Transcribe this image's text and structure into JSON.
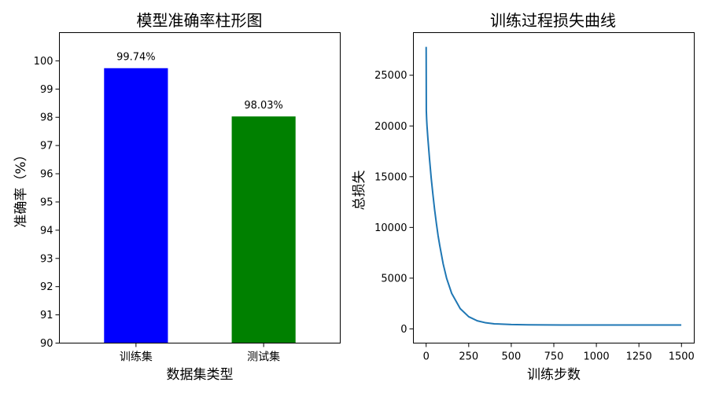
{
  "chart_data": [
    {
      "type": "bar",
      "title": "模型准确率柱形图",
      "xlabel": "数据集类型",
      "ylabel": "准确率（%）",
      "categories": [
        "训练集",
        "测试集"
      ],
      "values": [
        99.74,
        98.03
      ],
      "value_labels": [
        "99.74%",
        "98.03%"
      ],
      "colors": [
        "#0000ff",
        "#008000"
      ],
      "ylim": [
        90,
        101
      ],
      "yticks": [
        90,
        91,
        92,
        93,
        94,
        95,
        96,
        97,
        98,
        99,
        100
      ],
      "grid": false
    },
    {
      "type": "line",
      "title": "训练过程损失曲线",
      "xlabel": "训练步数",
      "ylabel": "总损失",
      "xlim": [
        -75,
        1575
      ],
      "ylim": [
        -1400,
        29200
      ],
      "xticks": [
        0,
        250,
        500,
        750,
        1000,
        1250,
        1500
      ],
      "yticks": [
        0,
        5000,
        10000,
        15000,
        20000,
        25000
      ],
      "line_color": "#1f77b4",
      "grid": false,
      "series": [
        {
          "x": [
            0,
            1,
            3,
            5,
            10,
            20,
            30,
            40,
            50,
            60,
            70,
            80,
            100,
            120,
            150,
            200,
            250,
            300,
            350,
            400,
            500,
            600,
            700,
            800,
            900,
            1000,
            1100,
            1200,
            1300,
            1400,
            1499
          ],
          "values": [
            27800,
            21500,
            20600,
            20000,
            18800,
            16700,
            14800,
            13200,
            11700,
            10400,
            9200,
            8200,
            6400,
            5000,
            3500,
            2000,
            1200,
            800,
            600,
            500,
            430,
            400,
            390,
            385,
            382,
            380,
            380,
            380,
            380,
            380,
            380
          ]
        }
      ]
    }
  ]
}
